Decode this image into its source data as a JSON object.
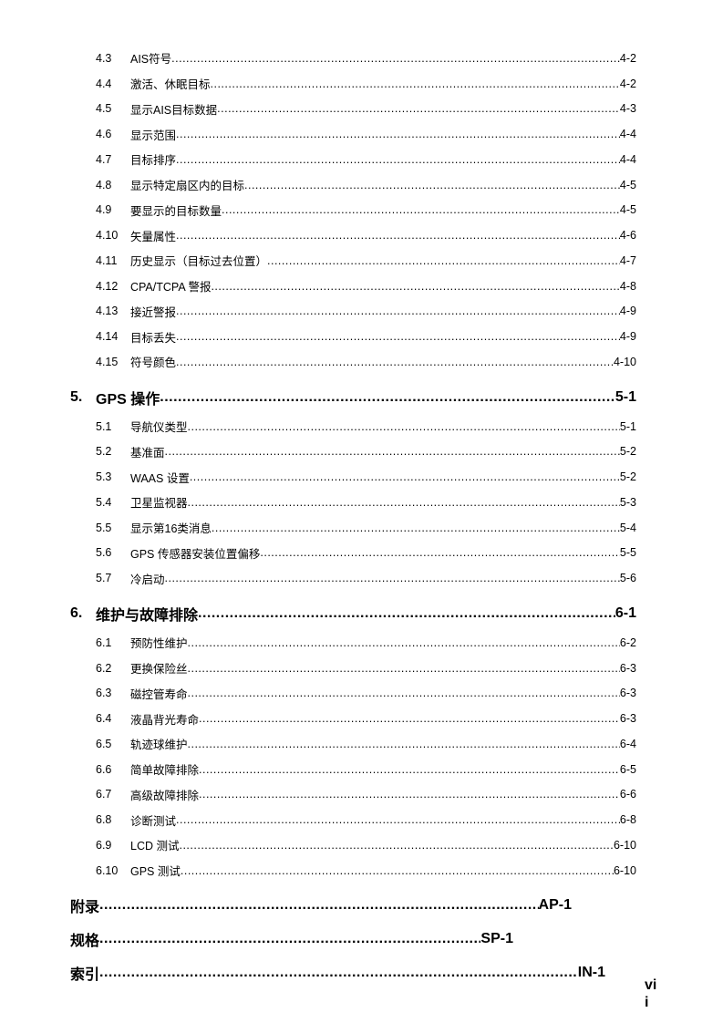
{
  "toc": {
    "continued_sections": [
      {
        "num": "4.3",
        "title": "AIS符号",
        "page": "4-2"
      },
      {
        "num": "4.4",
        "title": "激活、休眠目标",
        "page": "4-2"
      },
      {
        "num": "4.5",
        "title": "显示AIS目标数据",
        "page": "4-3"
      },
      {
        "num": "4.6",
        "title": "显示范围",
        "page": "4-4"
      },
      {
        "num": "4.7",
        "title": "目标排序",
        "page": "4-4"
      },
      {
        "num": "4.8",
        "title": "显示特定扇区内的目标",
        "page": "4-5"
      },
      {
        "num": "4.9",
        "title": "要显示的目标数量",
        "page": "4-5"
      },
      {
        "num": "4.10",
        "title": "矢量属性",
        "page": "4-6"
      },
      {
        "num": "4.11",
        "title": "历史显示（目标过去位置）",
        "page": "4-7"
      },
      {
        "num": "4.12",
        "title": "CPA/TCPA 警报",
        "page": "4-8"
      },
      {
        "num": "4.13",
        "title": "接近警报",
        "page": "4-9"
      },
      {
        "num": "4.14",
        "title": "目标丢失",
        "page": "4-9"
      },
      {
        "num": "4.15",
        "title": "符号颜色",
        "page": "4-10"
      }
    ],
    "chapters": [
      {
        "num": "5.",
        "title": "GPS 操作",
        "page": "5-1",
        "sections": [
          {
            "num": "5.1",
            "title": "导航仪类型",
            "page": "5-1"
          },
          {
            "num": "5.2",
            "title": "基准面",
            "page": "5-2"
          },
          {
            "num": "5.3",
            "title": "WAAS 设置",
            "page": "5-2"
          },
          {
            "num": "5.4",
            "title": "卫星监视器",
            "page": "5-3"
          },
          {
            "num": "5.5",
            "title": "显示第16类消息",
            "page": "5-4"
          },
          {
            "num": "5.6",
            "title": "GPS 传感器安装位置偏移",
            "page": "5-5"
          },
          {
            "num": "5.7",
            "title": "冷启动",
            "page": "5-6"
          }
        ]
      },
      {
        "num": "6.",
        "title": "维护与故障排除",
        "page": "6-1",
        "sections": [
          {
            "num": "6.1",
            "title": "预防性维护",
            "page": "6-2"
          },
          {
            "num": "6.2",
            "title": "更换保险丝",
            "page": "6-3"
          },
          {
            "num": "6.3",
            "title": "磁控管寿命",
            "page": "6-3"
          },
          {
            "num": "6.4",
            "title": "液晶背光寿命",
            "page": "6-3"
          },
          {
            "num": "6.5",
            "title": "轨迹球维护",
            "page": "6-4"
          },
          {
            "num": "6.6",
            "title": "简单故障排除",
            "page": "6-5"
          },
          {
            "num": "6.7",
            "title": "高级故障排除",
            "page": "6-6"
          },
          {
            "num": "6.8",
            "title": "诊断测试",
            "page": "6-8"
          },
          {
            "num": "6.9",
            "title": "LCD 测试",
            "page": "6-10"
          },
          {
            "num": "6.10",
            "title": "GPS 测试",
            "page": "6-10"
          }
        ]
      }
    ],
    "back_matter": [
      {
        "title": "附录",
        "page": "AP-1"
      },
      {
        "title": "规格",
        "page": "SP-1"
      },
      {
        "title": "索引",
        "page": "IN-1"
      }
    ]
  },
  "page_number": {
    "line1": "vi",
    "line2": "i"
  }
}
